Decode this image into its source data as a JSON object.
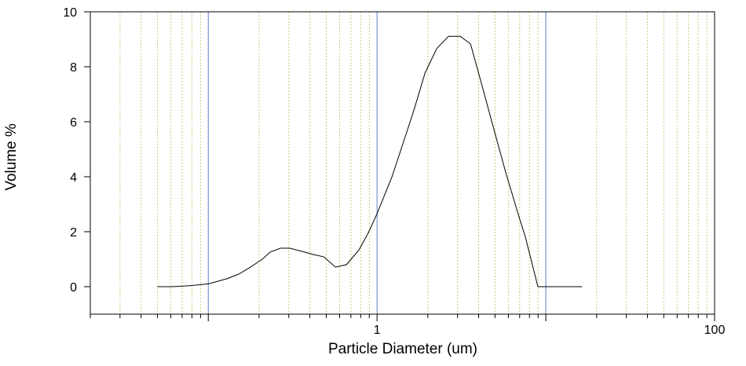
{
  "chart_data": {
    "type": "line",
    "x_label": "Particle Diameter (um)",
    "y_label": "Volume %",
    "x": [
      0.05,
      0.061,
      0.076,
      0.1,
      0.129,
      0.152,
      0.178,
      0.209,
      0.233,
      0.268,
      0.305,
      0.357,
      0.42,
      0.483,
      0.567,
      0.659,
      0.782,
      0.889,
      1,
      1.226,
      1.439,
      1.655,
      1.923,
      2.257,
      2.65,
      3.11,
      3.58,
      4.2,
      4.93,
      5.8,
      6.8,
      7.57,
      8.98,
      10.4,
      12.9,
      16.4
    ],
    "values": [
      0,
      0,
      0.03,
      0.1,
      0.29,
      0.46,
      0.71,
      1.0,
      1.26,
      1.4,
      1.4,
      1.29,
      1.17,
      1.09,
      0.71,
      0.8,
      1.34,
      1.97,
      2.66,
      4.0,
      5.29,
      6.43,
      7.77,
      8.66,
      9.11,
      9.11,
      8.83,
      7.29,
      5.71,
      4.14,
      2.71,
      1.8,
      0,
      0,
      0,
      0
    ],
    "color": "#000000",
    "x_log_scale": true,
    "xlim": [
      0.02,
      100
    ],
    "xticks": [
      1,
      100
    ],
    "x_major_grid": [
      0.1,
      1,
      10,
      100
    ],
    "x_major_grid_color": "#5b7fc0",
    "x_minor_grid": [
      0.02,
      0.03,
      0.04,
      0.05,
      0.06,
      0.07,
      0.08,
      0.09,
      0.2,
      0.3,
      0.4,
      0.5,
      0.6,
      0.7,
      0.8,
      0.9,
      2,
      3,
      4,
      5,
      6,
      7,
      8,
      9,
      20,
      30,
      40,
      50,
      60,
      70,
      80,
      90
    ],
    "x_minor_grid_color": "#c8cc80",
    "ylim": [
      -1,
      10
    ],
    "yticks": [
      0,
      2,
      4,
      6,
      8,
      10
    ]
  }
}
